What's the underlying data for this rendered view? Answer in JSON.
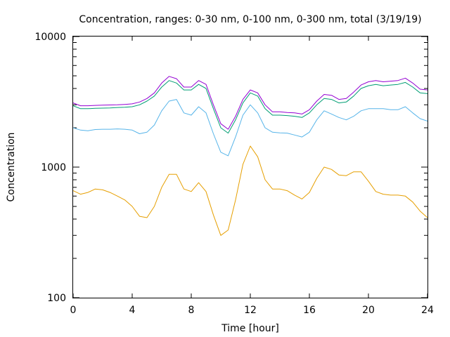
{
  "chart_data": {
    "type": "line",
    "title": "Concentration, ranges: 0-30 nm, 0-100 nm, 0-300 nm, total (3/19/19)",
    "xlabel": "Time [hour]",
    "ylabel": "Concentration",
    "xlim": [
      0,
      24
    ],
    "ylim": [
      100,
      10000
    ],
    "yscale": "log",
    "grid": false,
    "xticks": [
      0,
      4,
      8,
      12,
      16,
      20,
      24
    ],
    "xtick_labels": [
      "0",
      "4",
      "8",
      "12",
      "16",
      "20",
      "24"
    ],
    "yticks": [
      100,
      1000,
      10000
    ],
    "ytick_labels": [
      "100",
      "1000",
      "10000"
    ],
    "series": [
      {
        "color": "#e69f00",
        "x": [
          0,
          0.5,
          1,
          1.5,
          2,
          2.5,
          3,
          3.5,
          4,
          4.5,
          5,
          5.5,
          6,
          6.5,
          7,
          7.5,
          8,
          8.5,
          9,
          9.5,
          10,
          10.5,
          11,
          11.5,
          12,
          12.5,
          13,
          13.5,
          14,
          14.5,
          15,
          15.5,
          16,
          16.5,
          17,
          17.5,
          18,
          18.5,
          19,
          19.5,
          20,
          20.5,
          21,
          21.5,
          22,
          22.5,
          23,
          23.5,
          24
        ],
        "y": [
          660,
          620,
          640,
          680,
          670,
          640,
          600,
          560,
          500,
          420,
          410,
          500,
          700,
          880,
          880,
          680,
          650,
          760,
          650,
          430,
          300,
          330,
          560,
          1050,
          1450,
          1200,
          800,
          680,
          680,
          660,
          610,
          570,
          640,
          820,
          1000,
          960,
          870,
          860,
          920,
          920,
          780,
          650,
          620,
          610,
          610,
          600,
          540,
          460,
          410
        ]
      },
      {
        "color": "#56b4e9",
        "x": [
          0,
          0.5,
          1,
          1.5,
          2,
          2.5,
          3,
          3.5,
          4,
          4.5,
          5,
          5.5,
          6,
          6.5,
          7,
          7.5,
          8,
          8.5,
          9,
          9.5,
          10,
          10.5,
          11,
          11.5,
          12,
          12.5,
          13,
          13.5,
          14,
          14.5,
          15,
          15.5,
          16,
          16.5,
          17,
          17.5,
          18,
          18.5,
          19,
          19.5,
          20,
          20.5,
          21,
          21.5,
          22,
          22.5,
          23,
          23.5,
          24
        ],
        "y": [
          2000,
          1920,
          1900,
          1940,
          1950,
          1950,
          1960,
          1950,
          1920,
          1800,
          1850,
          2100,
          2700,
          3200,
          3300,
          2600,
          2500,
          2900,
          2600,
          1800,
          1300,
          1220,
          1700,
          2500,
          3000,
          2600,
          2000,
          1850,
          1830,
          1820,
          1760,
          1700,
          1850,
          2300,
          2700,
          2550,
          2400,
          2300,
          2450,
          2700,
          2800,
          2800,
          2800,
          2750,
          2750,
          2900,
          2600,
          2350,
          2250
        ]
      },
      {
        "color": "#009e73",
        "x": [
          0,
          0.5,
          1,
          1.5,
          2,
          2.5,
          3,
          3.5,
          4,
          4.5,
          5,
          5.5,
          6,
          6.5,
          7,
          7.5,
          8,
          8.5,
          9,
          9.5,
          10,
          10.5,
          11,
          11.5,
          12,
          12.5,
          13,
          13.5,
          14,
          14.5,
          15,
          15.5,
          16,
          16.5,
          17,
          17.5,
          18,
          18.5,
          19,
          19.5,
          20,
          20.5,
          21,
          21.5,
          22,
          22.5,
          23,
          23.5,
          24
        ],
        "y": [
          2950,
          2800,
          2800,
          2820,
          2830,
          2840,
          2860,
          2870,
          2900,
          3000,
          3200,
          3500,
          4100,
          4600,
          4400,
          3900,
          3900,
          4300,
          4000,
          2800,
          2000,
          1820,
          2300,
          3100,
          3700,
          3500,
          2800,
          2500,
          2500,
          2480,
          2450,
          2400,
          2600,
          3000,
          3350,
          3300,
          3100,
          3150,
          3500,
          4000,
          4200,
          4300,
          4200,
          4250,
          4300,
          4450,
          4100,
          3700,
          3650
        ]
      },
      {
        "color": "#9400d3",
        "x": [
          0,
          0.5,
          1,
          1.5,
          2,
          2.5,
          3,
          3.5,
          4,
          4.5,
          5,
          5.5,
          6,
          6.5,
          7,
          7.5,
          8,
          8.5,
          9,
          9.5,
          10,
          10.5,
          11,
          11.5,
          12,
          12.5,
          13,
          13.5,
          14,
          14.5,
          15,
          15.5,
          16,
          16.5,
          17,
          17.5,
          18,
          18.5,
          19,
          19.5,
          20,
          20.5,
          21,
          21.5,
          22,
          22.5,
          23,
          23.5,
          24
        ],
        "y": [
          3100,
          2950,
          2950,
          2970,
          2980,
          2990,
          3000,
          3020,
          3050,
          3150,
          3350,
          3700,
          4400,
          4950,
          4750,
          4100,
          4100,
          4600,
          4300,
          3000,
          2150,
          1950,
          2450,
          3300,
          3900,
          3700,
          3000,
          2650,
          2650,
          2620,
          2600,
          2550,
          2750,
          3200,
          3600,
          3550,
          3300,
          3350,
          3750,
          4250,
          4500,
          4600,
          4500,
          4550,
          4600,
          4800,
          4400,
          3950,
          3900
        ]
      }
    ]
  }
}
